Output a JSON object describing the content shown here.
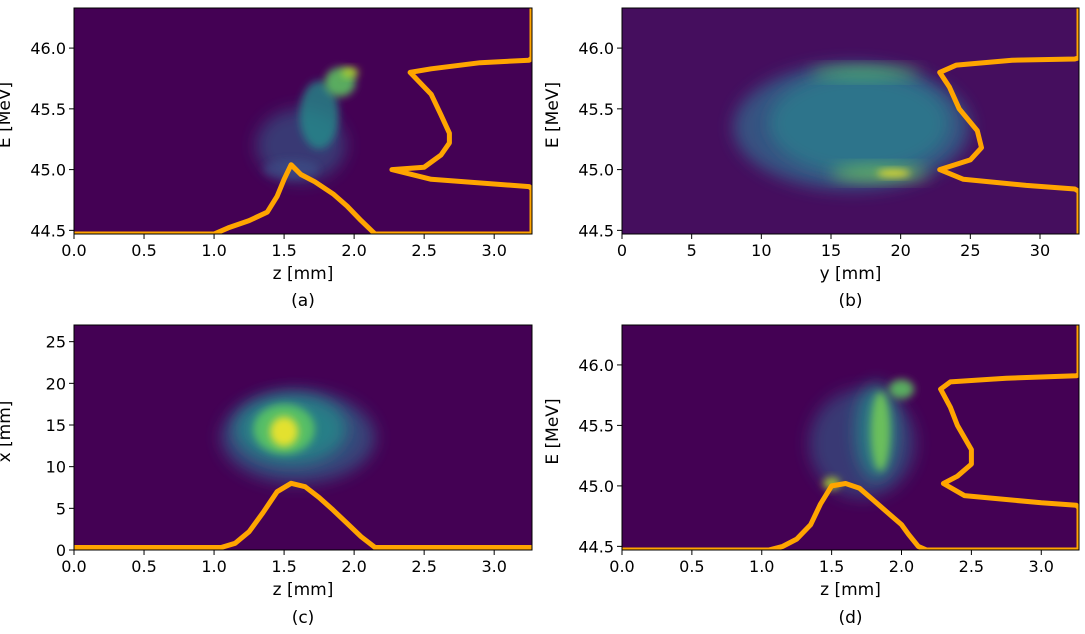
{
  "colors": {
    "background_field": "#440154",
    "profile_line": "#ffa500",
    "beam_low": "#3b528b",
    "beam_mid": "#21918c",
    "beam_high": "#5ec962",
    "beam_peak": "#fde725"
  },
  "chart_data": [
    {
      "type": "heatmap",
      "panel": "a",
      "caption": "(a)",
      "xlabel": "z [mm]",
      "ylabel": "E [MeV]",
      "xlim": [
        0,
        3.27
      ],
      "ylim": [
        44.47,
        46.33
      ],
      "xticks": [
        0.0,
        0.5,
        1.0,
        1.5,
        2.0,
        2.5,
        3.0
      ],
      "xtick_labels": [
        "0.0",
        "0.5",
        "1.0",
        "1.5",
        "2.0",
        "2.5",
        "3.0"
      ],
      "yticks": [
        44.5,
        45.0,
        45.5,
        46.0
      ],
      "ytick_labels": [
        "44.5",
        "45.0",
        "45.5",
        "46.0"
      ],
      "background": "#440154",
      "blobs": [
        {
          "cx": 1.62,
          "cy": 45.2,
          "rx": 0.32,
          "ry": 0.3,
          "color": "#31688e",
          "opacity": 0.55
        },
        {
          "cx": 1.55,
          "cy": 45.0,
          "rx": 0.2,
          "ry": 0.08,
          "color": "#3b528b",
          "opacity": 0.6
        },
        {
          "cx": 1.75,
          "cy": 45.45,
          "rx": 0.14,
          "ry": 0.28,
          "color": "#21918c",
          "opacity": 0.75
        },
        {
          "cx": 1.9,
          "cy": 45.72,
          "rx": 0.11,
          "ry": 0.12,
          "color": "#5ec962",
          "opacity": 0.85
        },
        {
          "cx": 1.97,
          "cy": 45.8,
          "rx": 0.06,
          "ry": 0.04,
          "color": "#b5de2b",
          "opacity": 0.9
        }
      ],
      "profiles": [
        {
          "name": "z-profile",
          "x": [
            0.0,
            1.0,
            1.1,
            1.25,
            1.38,
            1.45,
            1.5,
            1.55,
            1.62,
            1.72,
            1.85,
            1.95,
            2.05,
            2.15,
            3.27
          ],
          "y": [
            44.47,
            44.47,
            44.52,
            44.58,
            44.65,
            44.78,
            44.92,
            45.04,
            44.96,
            44.9,
            44.8,
            44.7,
            44.58,
            44.47,
            44.47
          ]
        },
        {
          "name": "E-profile",
          "x": [
            3.27,
            3.27,
            3.25,
            2.9,
            2.55,
            2.4,
            2.55,
            2.62,
            2.68,
            2.68,
            2.62,
            2.5,
            2.27,
            2.55,
            3.25,
            3.27,
            3.27
          ],
          "y": [
            46.33,
            45.92,
            45.9,
            45.88,
            45.83,
            45.8,
            45.62,
            45.45,
            45.3,
            45.22,
            45.12,
            45.02,
            45.0,
            44.92,
            44.86,
            44.84,
            44.47
          ]
        }
      ]
    },
    {
      "type": "heatmap",
      "panel": "b",
      "caption": "(b)",
      "xlabel": "y [mm]",
      "ylabel": "E [MeV]",
      "xlim": [
        0,
        32.8
      ],
      "ylim": [
        44.47,
        46.33
      ],
      "xticks": [
        0,
        5,
        10,
        15,
        20,
        25,
        30
      ],
      "xtick_labels": [
        "0",
        "5",
        "10",
        "15",
        "20",
        "25",
        "30"
      ],
      "yticks": [
        44.5,
        45.0,
        45.5,
        46.0
      ],
      "ytick_labels": [
        "44.5",
        "45.0",
        "45.5",
        "46.0"
      ],
      "background": "#450e5e",
      "blobs": [
        {
          "cx": 16.5,
          "cy": 45.35,
          "rx": 8.5,
          "ry": 0.52,
          "color": "#31688e",
          "opacity": 0.75
        },
        {
          "cx": 17.0,
          "cy": 45.38,
          "rx": 6.5,
          "ry": 0.42,
          "color": "#26828e",
          "opacity": 0.7
        },
        {
          "cx": 17.5,
          "cy": 45.8,
          "rx": 4.0,
          "ry": 0.05,
          "color": "#5ec962",
          "opacity": 0.7
        },
        {
          "cx": 18.5,
          "cy": 44.97,
          "rx": 3.5,
          "ry": 0.06,
          "color": "#7ad151",
          "opacity": 0.75
        },
        {
          "cx": 19.5,
          "cy": 44.97,
          "rx": 1.2,
          "ry": 0.03,
          "color": "#fde725",
          "opacity": 0.85
        }
      ],
      "profiles": [
        {
          "name": "E-profile",
          "x": [
            32.8,
            32.8,
            32.5,
            28.0,
            24.0,
            22.8,
            23.5,
            24.2,
            25.5,
            25.8,
            25.0,
            22.8,
            24.5,
            29.0,
            32.5,
            32.8,
            32.8
          ],
          "y": [
            46.33,
            45.92,
            45.91,
            45.9,
            45.86,
            45.8,
            45.68,
            45.5,
            45.32,
            45.18,
            45.08,
            45.0,
            44.92,
            44.87,
            44.84,
            44.82,
            44.47
          ]
        }
      ]
    },
    {
      "type": "heatmap",
      "panel": "c",
      "caption": "(c)",
      "xlabel": "z [mm]",
      "ylabel": "x [mm]",
      "xlim": [
        0,
        3.27
      ],
      "ylim": [
        0,
        27
      ],
      "xticks": [
        0.0,
        0.5,
        1.0,
        1.5,
        2.0,
        2.5,
        3.0
      ],
      "xtick_labels": [
        "0.0",
        "0.5",
        "1.0",
        "1.5",
        "2.0",
        "2.5",
        "3.0"
      ],
      "yticks": [
        0,
        5,
        10,
        15,
        20,
        25
      ],
      "ytick_labels": [
        "0",
        "5",
        "10",
        "15",
        "20",
        "25"
      ],
      "background": "#440154",
      "blobs": [
        {
          "cx": 1.6,
          "cy": 13.5,
          "rx": 0.55,
          "ry": 5.5,
          "color": "#31688e",
          "opacity": 0.65
        },
        {
          "cx": 1.55,
          "cy": 14.5,
          "rx": 0.4,
          "ry": 4.2,
          "color": "#21918c",
          "opacity": 0.75
        },
        {
          "cx": 1.5,
          "cy": 14.5,
          "rx": 0.22,
          "ry": 3.0,
          "color": "#5ec962",
          "opacity": 0.85
        },
        {
          "cx": 1.5,
          "cy": 14.2,
          "rx": 0.1,
          "ry": 1.8,
          "color": "#fde725",
          "opacity": 0.85
        }
      ],
      "profiles": [
        {
          "name": "z-profile",
          "x": [
            0.0,
            1.05,
            1.15,
            1.25,
            1.35,
            1.45,
            1.55,
            1.65,
            1.75,
            1.85,
            1.95,
            2.05,
            2.15,
            3.27
          ],
          "y": [
            0.3,
            0.3,
            0.8,
            2.2,
            4.5,
            7.0,
            8.0,
            7.6,
            6.3,
            4.8,
            3.2,
            1.6,
            0.3,
            0.3
          ]
        }
      ]
    },
    {
      "type": "heatmap",
      "panel": "d",
      "caption": "(d)",
      "xlabel": "z [mm]",
      "ylabel": "E [MeV]",
      "xlim": [
        0,
        3.27
      ],
      "ylim": [
        44.47,
        46.33
      ],
      "xticks": [
        0.0,
        0.5,
        1.0,
        1.5,
        2.0,
        2.5,
        3.0
      ],
      "xtick_labels": [
        "0.0",
        "0.5",
        "1.0",
        "1.5",
        "2.0",
        "2.5",
        "3.0"
      ],
      "yticks": [
        44.5,
        45.0,
        45.5,
        46.0
      ],
      "ytick_labels": [
        "44.5",
        "45.0",
        "45.5",
        "46.0"
      ],
      "background": "#440154",
      "blobs": [
        {
          "cx": 1.72,
          "cy": 45.35,
          "rx": 0.38,
          "ry": 0.45,
          "color": "#31688e",
          "opacity": 0.55
        },
        {
          "cx": 1.82,
          "cy": 45.45,
          "rx": 0.15,
          "ry": 0.4,
          "color": "#21918c",
          "opacity": 0.7
        },
        {
          "cx": 1.85,
          "cy": 45.45,
          "rx": 0.07,
          "ry": 0.33,
          "color": "#7ad151",
          "opacity": 0.8
        },
        {
          "cx": 2.0,
          "cy": 45.8,
          "rx": 0.09,
          "ry": 0.08,
          "color": "#5ec962",
          "opacity": 0.85
        },
        {
          "cx": 1.5,
          "cy": 45.02,
          "rx": 0.06,
          "ry": 0.05,
          "color": "#b5de2b",
          "opacity": 0.85
        }
      ],
      "profiles": [
        {
          "name": "z-profile",
          "x": [
            0.0,
            1.05,
            1.15,
            1.25,
            1.35,
            1.42,
            1.5,
            1.6,
            1.7,
            1.8,
            1.9,
            2.0,
            2.05,
            2.12,
            2.18,
            3.27
          ],
          "y": [
            44.47,
            44.47,
            44.5,
            44.56,
            44.68,
            44.85,
            45.0,
            45.02,
            44.98,
            44.88,
            44.78,
            44.68,
            44.6,
            44.5,
            44.47,
            44.47
          ]
        },
        {
          "name": "E-profile",
          "x": [
            3.27,
            3.27,
            3.25,
            2.75,
            2.35,
            2.28,
            2.35,
            2.4,
            2.5,
            2.5,
            2.4,
            2.3,
            2.45,
            3.0,
            3.25,
            3.27,
            3.27
          ],
          "y": [
            46.33,
            45.92,
            45.91,
            45.89,
            45.86,
            45.8,
            45.65,
            45.5,
            45.3,
            45.18,
            45.08,
            45.02,
            44.92,
            44.86,
            44.84,
            44.82,
            44.47
          ]
        }
      ]
    }
  ]
}
